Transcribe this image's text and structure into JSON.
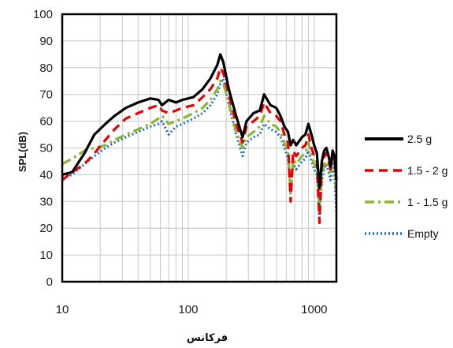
{
  "chart_data": {
    "type": "line",
    "xlabel": "فرکانس",
    "ylabel": "SPL(dB)",
    "x_scale": "log",
    "xlim": [
      10,
      1500
    ],
    "ylim": [
      0,
      100
    ],
    "x_ticks": [
      10,
      100,
      1000
    ],
    "x_tick_labels": [
      "10",
      "100",
      "1000"
    ],
    "y_ticks": [
      0,
      10,
      20,
      30,
      40,
      50,
      60,
      70,
      80,
      90,
      100
    ],
    "y_tick_labels": [
      "0",
      "10",
      "20",
      "30",
      "40",
      "50",
      "60",
      "70",
      "80",
      "90",
      "100"
    ],
    "grid": true,
    "legend_position": "right",
    "series": [
      {
        "name": "2.5 g",
        "color": "#000000",
        "style": "solid",
        "points": [
          [
            10,
            40
          ],
          [
            12,
            41
          ],
          [
            15,
            48
          ],
          [
            18,
            55
          ],
          [
            22,
            59
          ],
          [
            26,
            62
          ],
          [
            32,
            65
          ],
          [
            40,
            67
          ],
          [
            50,
            68.5
          ],
          [
            58,
            68
          ],
          [
            62,
            66
          ],
          [
            70,
            68
          ],
          [
            80,
            67
          ],
          [
            90,
            68
          ],
          [
            110,
            69
          ],
          [
            130,
            72
          ],
          [
            150,
            76
          ],
          [
            170,
            81
          ],
          [
            180,
            85
          ],
          [
            190,
            82
          ],
          [
            210,
            72
          ],
          [
            240,
            62
          ],
          [
            270,
            54
          ],
          [
            290,
            60
          ],
          [
            330,
            63
          ],
          [
            370,
            64
          ],
          [
            400,
            70
          ],
          [
            450,
            66
          ],
          [
            500,
            65
          ],
          [
            540,
            62
          ],
          [
            580,
            58
          ],
          [
            620,
            56
          ],
          [
            650,
            51
          ],
          [
            680,
            53
          ],
          [
            720,
            51
          ],
          [
            800,
            54
          ],
          [
            850,
            55
          ],
          [
            900,
            59
          ],
          [
            950,
            55
          ],
          [
            1000,
            51
          ],
          [
            1050,
            48
          ],
          [
            1100,
            35
          ],
          [
            1150,
            45
          ],
          [
            1200,
            49
          ],
          [
            1250,
            50
          ],
          [
            1300,
            47
          ],
          [
            1350,
            43
          ],
          [
            1400,
            49
          ],
          [
            1450,
            47
          ],
          [
            1500,
            38
          ]
        ]
      },
      {
        "name": "1.5 - 2 g",
        "color": "#e60000",
        "style": "dashed",
        "points": [
          [
            10,
            38
          ],
          [
            12,
            41
          ],
          [
            15,
            44
          ],
          [
            18,
            48
          ],
          [
            22,
            53
          ],
          [
            26,
            57
          ],
          [
            32,
            61
          ],
          [
            40,
            63
          ],
          [
            50,
            65
          ],
          [
            58,
            66
          ],
          [
            62,
            64
          ],
          [
            70,
            63
          ],
          [
            80,
            64
          ],
          [
            90,
            65
          ],
          [
            110,
            66
          ],
          [
            130,
            69
          ],
          [
            150,
            72
          ],
          [
            170,
            76
          ],
          [
            180,
            80
          ],
          [
            190,
            78
          ],
          [
            210,
            70
          ],
          [
            240,
            59
          ],
          [
            270,
            52
          ],
          [
            290,
            58
          ],
          [
            330,
            60
          ],
          [
            370,
            62
          ],
          [
            400,
            67
          ],
          [
            450,
            63
          ],
          [
            500,
            62
          ],
          [
            540,
            60
          ],
          [
            580,
            55
          ],
          [
            620,
            52
          ],
          [
            650,
            30
          ],
          [
            680,
            49
          ],
          [
            720,
            47
          ],
          [
            800,
            50
          ],
          [
            850,
            51
          ],
          [
            900,
            55
          ],
          [
            950,
            50
          ],
          [
            1000,
            47
          ],
          [
            1050,
            45
          ],
          [
            1100,
            22
          ],
          [
            1150,
            43
          ],
          [
            1200,
            47
          ],
          [
            1250,
            48
          ],
          [
            1300,
            45
          ],
          [
            1350,
            42
          ],
          [
            1400,
            48
          ],
          [
            1450,
            46
          ],
          [
            1500,
            41
          ]
        ]
      },
      {
        "name": "1 - 1.5 g",
        "color": "#8ab833",
        "style": "dashdot",
        "points": [
          [
            10,
            44
          ],
          [
            12,
            46
          ],
          [
            15,
            49
          ],
          [
            18,
            50
          ],
          [
            22,
            51
          ],
          [
            26,
            53
          ],
          [
            32,
            55
          ],
          [
            40,
            57
          ],
          [
            50,
            59
          ],
          [
            58,
            61
          ],
          [
            62,
            62
          ],
          [
            70,
            59
          ],
          [
            80,
            60
          ],
          [
            90,
            61
          ],
          [
            110,
            63
          ],
          [
            130,
            65
          ],
          [
            150,
            68
          ],
          [
            170,
            72
          ],
          [
            180,
            75
          ],
          [
            190,
            74
          ],
          [
            210,
            67
          ],
          [
            240,
            56
          ],
          [
            270,
            50
          ],
          [
            290,
            54
          ],
          [
            330,
            56
          ],
          [
            370,
            58
          ],
          [
            400,
            62
          ],
          [
            450,
            59
          ],
          [
            500,
            58
          ],
          [
            540,
            56
          ],
          [
            580,
            52
          ],
          [
            620,
            49
          ],
          [
            650,
            33
          ],
          [
            680,
            46
          ],
          [
            720,
            44
          ],
          [
            800,
            47
          ],
          [
            850,
            48
          ],
          [
            900,
            52
          ],
          [
            950,
            47
          ],
          [
            1000,
            44
          ],
          [
            1050,
            42
          ],
          [
            1100,
            29
          ],
          [
            1150,
            40
          ],
          [
            1200,
            44
          ],
          [
            1250,
            45
          ],
          [
            1300,
            43
          ],
          [
            1350,
            41
          ],
          [
            1400,
            46
          ],
          [
            1450,
            44
          ],
          [
            1500,
            30
          ]
        ]
      },
      {
        "name": "Empty",
        "color": "#1f6fc0",
        "style": "dotted",
        "points": [
          [
            10,
            39
          ],
          [
            12,
            40
          ],
          [
            15,
            44
          ],
          [
            18,
            47
          ],
          [
            22,
            50
          ],
          [
            26,
            52
          ],
          [
            32,
            54
          ],
          [
            40,
            56
          ],
          [
            50,
            58
          ],
          [
            58,
            59
          ],
          [
            62,
            60
          ],
          [
            70,
            55
          ],
          [
            80,
            58
          ],
          [
            90,
            59
          ],
          [
            110,
            61
          ],
          [
            130,
            63
          ],
          [
            150,
            66
          ],
          [
            170,
            70
          ],
          [
            180,
            74
          ],
          [
            190,
            76
          ],
          [
            210,
            66
          ],
          [
            240,
            55
          ],
          [
            270,
            47
          ],
          [
            290,
            52
          ],
          [
            330,
            54
          ],
          [
            370,
            55
          ],
          [
            400,
            59
          ],
          [
            450,
            57
          ],
          [
            500,
            56
          ],
          [
            540,
            54
          ],
          [
            580,
            50
          ],
          [
            620,
            46
          ],
          [
            650,
            35
          ],
          [
            680,
            44
          ],
          [
            720,
            42
          ],
          [
            800,
            45
          ],
          [
            850,
            46
          ],
          [
            900,
            49
          ],
          [
            950,
            45
          ],
          [
            1000,
            42
          ],
          [
            1050,
            40
          ],
          [
            1100,
            24
          ],
          [
            1150,
            38
          ],
          [
            1200,
            42
          ],
          [
            1250,
            44
          ],
          [
            1300,
            41
          ],
          [
            1350,
            38
          ],
          [
            1400,
            44
          ],
          [
            1450,
            40
          ],
          [
            1500,
            26
          ]
        ]
      }
    ]
  }
}
